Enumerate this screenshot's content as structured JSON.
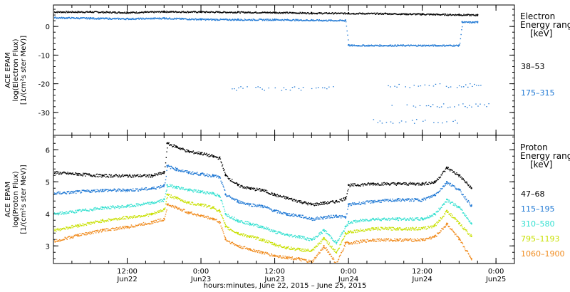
{
  "chart_data": [
    {
      "type": "scatter",
      "panel": "electron",
      "ylabel_lines": [
        "ACE EPAM",
        "log(Electron Flux)",
        "[1/(cm²s ster MeV)]"
      ],
      "yticks": [
        0,
        -10,
        -20,
        -30
      ],
      "ylim": [
        -38,
        7.5
      ],
      "legend_title_lines": [
        "Electron",
        "Energy range",
        "[keV]"
      ],
      "series": [
        {
          "name": "38–53",
          "color": "#000000",
          "x": [
            0,
            6,
            12,
            15,
            18,
            24,
            30,
            36,
            42,
            48,
            54,
            60,
            66,
            69
          ],
          "y": [
            5.2,
            5.2,
            5.0,
            5.1,
            5.3,
            5.2,
            5.1,
            5.0,
            4.8,
            4.7,
            4.6,
            4.4,
            4.2,
            4.1
          ]
        },
        {
          "name": "175–315",
          "color": "#1f78d4",
          "x": [
            0,
            6,
            12,
            18,
            24,
            30,
            36,
            42,
            47.5,
            48,
            66,
            66.5,
            69
          ],
          "y": [
            3.2,
            3.0,
            2.8,
            3.0,
            2.6,
            2.5,
            2.5,
            2.3,
            2.2,
            -6.5,
            -6.5,
            1.6,
            1.6
          ],
          "sparse": [
            {
              "x": [
                29,
                46
              ],
              "y": -21.5
            },
            {
              "x": [
                53,
                70
              ],
              "y": -20.5
            },
            {
              "x": [
                55,
                71
              ],
              "y": -27.5
            },
            {
              "x": [
                52,
                66
              ],
              "y": -33
            }
          ]
        }
      ]
    },
    {
      "type": "scatter",
      "panel": "proton",
      "ylabel_lines": [
        "ACE EPAM",
        "log(Proton Flux)",
        "[1/(cm²s ster MeV)]"
      ],
      "yticks": [
        3,
        4,
        5,
        6
      ],
      "ylim": [
        2.45,
        6.45
      ],
      "legend_title_lines": [
        "Proton",
        "Energy range",
        "[keV]"
      ],
      "series": [
        {
          "name": "47–68",
          "color": "#000000",
          "x": [
            0,
            4,
            8,
            12,
            16,
            18,
            18.5,
            20,
            22,
            24,
            26,
            27,
            28,
            30,
            32,
            34,
            36,
            38,
            40,
            42,
            44,
            46,
            47.5,
            48,
            52,
            56,
            60,
            62,
            64,
            66,
            68
          ],
          "y": [
            5.3,
            5.25,
            5.2,
            5.2,
            5.2,
            5.3,
            6.2,
            6.1,
            5.95,
            5.9,
            5.8,
            5.75,
            5.2,
            4.9,
            4.8,
            4.75,
            4.6,
            4.5,
            4.4,
            4.3,
            4.35,
            4.4,
            4.5,
            4.9,
            4.95,
            4.95,
            4.95,
            5.0,
            5.45,
            5.2,
            4.8
          ]
        },
        {
          "name": "115–195",
          "color": "#1f78d4",
          "x": [
            0,
            4,
            8,
            12,
            16,
            18,
            18.5,
            20,
            22,
            24,
            26,
            27,
            28,
            30,
            32,
            34,
            36,
            38,
            40,
            42,
            44,
            46,
            47.5,
            48,
            52,
            56,
            60,
            62,
            64,
            66,
            68
          ],
          "y": [
            4.65,
            4.7,
            4.75,
            4.75,
            4.8,
            4.9,
            5.5,
            5.4,
            5.3,
            5.25,
            5.2,
            5.15,
            4.6,
            4.4,
            4.3,
            4.25,
            4.1,
            4.0,
            3.95,
            3.85,
            3.9,
            3.95,
            3.9,
            4.3,
            4.4,
            4.45,
            4.45,
            4.6,
            5.0,
            4.75,
            4.25
          ]
        },
        {
          "name": "310–580",
          "color": "#33e0d0",
          "x": [
            0,
            4,
            8,
            12,
            16,
            18,
            18.5,
            20,
            22,
            24,
            26,
            27,
            28,
            30,
            32,
            34,
            36,
            38,
            40,
            42,
            44,
            46,
            47.5,
            48,
            52,
            56,
            60,
            62,
            64,
            66,
            68
          ],
          "y": [
            4.0,
            4.1,
            4.2,
            4.25,
            4.35,
            4.45,
            4.9,
            4.85,
            4.75,
            4.7,
            4.65,
            4.55,
            4.0,
            3.8,
            3.7,
            3.6,
            3.45,
            3.35,
            3.3,
            3.2,
            3.5,
            3.1,
            3.6,
            3.75,
            3.85,
            3.85,
            3.85,
            4.0,
            4.45,
            4.2,
            3.7
          ]
        },
        {
          "name": "795–1193",
          "color": "#c8e000",
          "x": [
            0,
            4,
            8,
            12,
            16,
            18,
            18.5,
            20,
            22,
            24,
            26,
            27,
            28,
            30,
            32,
            34,
            36,
            38,
            40,
            42,
            44,
            46,
            47.5,
            48,
            52,
            56,
            60,
            62,
            64,
            66,
            68
          ],
          "y": [
            3.5,
            3.65,
            3.8,
            3.9,
            4.0,
            4.15,
            4.6,
            4.5,
            4.35,
            4.3,
            4.2,
            4.1,
            3.6,
            3.4,
            3.3,
            3.2,
            3.05,
            2.95,
            2.9,
            2.85,
            3.25,
            2.8,
            3.4,
            3.45,
            3.55,
            3.55,
            3.55,
            3.65,
            4.1,
            3.7,
            3.3
          ]
        },
        {
          "name": "1060–1900",
          "color": "#f08a1c",
          "x": [
            0,
            4,
            8,
            12,
            16,
            18,
            18.5,
            20,
            22,
            24,
            26,
            27,
            28,
            30,
            32,
            34,
            36,
            38,
            40,
            42,
            44,
            46,
            47.5,
            48,
            52,
            56,
            60,
            62,
            64,
            66,
            68
          ],
          "y": [
            3.15,
            3.35,
            3.5,
            3.6,
            3.75,
            3.85,
            4.3,
            4.2,
            4.05,
            3.95,
            3.85,
            3.75,
            3.2,
            3.0,
            2.9,
            2.8,
            2.7,
            2.65,
            2.6,
            2.5,
            3.0,
            2.45,
            3.1,
            3.1,
            3.2,
            3.2,
            3.2,
            3.3,
            3.7,
            3.2,
            2.6
          ]
        }
      ]
    }
  ],
  "xaxis": {
    "range_hours": [
      0,
      75
    ],
    "ticks": [
      {
        "hours": 12,
        "time": "12:00",
        "date": "Jun22"
      },
      {
        "hours": 24,
        "time": "0:00",
        "date": "Jun23"
      },
      {
        "hours": 36,
        "time": "12:00",
        "date": "Jun23"
      },
      {
        "hours": 48,
        "time": "0:00",
        "date": "Jun24"
      },
      {
        "hours": 60,
        "time": "12:00",
        "date": "Jun24"
      },
      {
        "hours": 72,
        "time": "0:00",
        "date": "Jun25"
      }
    ],
    "title": "hours:minutes, June 22, 2015 – June 25, 2015"
  }
}
